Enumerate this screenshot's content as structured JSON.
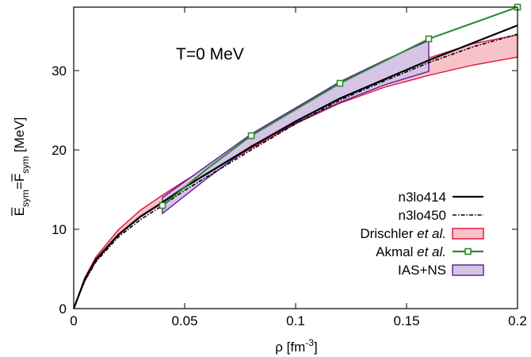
{
  "chart_data": {
    "type": "line",
    "annotation": "T=0 MeV",
    "xlabel": {
      "main": "ρ [fm",
      "sup": "-3",
      "tail": "]"
    },
    "ylabel": {
      "e": "E",
      "e_sub": "sym",
      "eq": "=",
      "f": "F",
      "f_sub": "sym",
      "unit": " [MeV]"
    },
    "xlim": [
      0,
      0.2
    ],
    "ylim": [
      0,
      38
    ],
    "xticks": [
      0,
      0.05,
      0.1,
      0.15,
      0.2
    ],
    "xtick_labels": [
      "0",
      "0.05",
      "0.1",
      "0.15",
      "0.2"
    ],
    "yticks": [
      0,
      10,
      20,
      30
    ],
    "ytick_labels": [
      "0",
      "10",
      "20",
      "30"
    ],
    "legend_position": "bottom-right",
    "series": [
      {
        "name": "n3lo414",
        "style": "solid",
        "color": "#000000",
        "x": [
          0,
          0.005,
          0.01,
          0.02,
          0.03,
          0.04,
          0.05,
          0.06,
          0.08,
          0.1,
          0.12,
          0.14,
          0.16,
          0.18,
          0.2
        ],
        "y": [
          0,
          3.7,
          6.2,
          9.3,
          11.6,
          13.4,
          15.3,
          17.0,
          20.4,
          23.6,
          26.5,
          28.9,
          31.3,
          33.5,
          35.7
        ]
      },
      {
        "name": "n3lo450",
        "style": "dashdot",
        "color": "#000000",
        "x": [
          0,
          0.005,
          0.01,
          0.02,
          0.03,
          0.04,
          0.05,
          0.06,
          0.08,
          0.1,
          0.12,
          0.14,
          0.16,
          0.18,
          0.2
        ],
        "y": [
          0,
          3.5,
          5.9,
          9.0,
          11.2,
          13.0,
          14.9,
          16.6,
          20.0,
          23.3,
          26.3,
          28.7,
          31.0,
          33.0,
          34.6
        ]
      },
      {
        "name": "Drischler et al.",
        "name_plain": "Drischler ",
        "name_italic": "et al.",
        "style": "band",
        "color": "#e0103a",
        "fill": "#f7c2c8",
        "x": [
          0,
          0.005,
          0.01,
          0.02,
          0.03,
          0.04,
          0.05,
          0.06,
          0.08,
          0.1,
          0.12,
          0.14,
          0.16,
          0.18,
          0.2
        ],
        "upper": [
          0,
          3.9,
          6.5,
          9.9,
          12.4,
          14.3,
          16.1,
          17.7,
          20.7,
          23.6,
          26.5,
          29.2,
          31.6,
          33.4,
          34.5
        ],
        "lower": [
          0,
          3.5,
          6.0,
          9.2,
          11.5,
          13.3,
          15.2,
          16.9,
          20.2,
          23.3,
          25.9,
          27.9,
          29.4,
          30.7,
          31.7
        ]
      },
      {
        "name": "Akmal et al.",
        "name_plain": "Akmal ",
        "name_italic": "et al.",
        "style": "line-marker",
        "color": "#2a8a2a",
        "x": [
          0.04,
          0.06,
          0.08,
          0.1,
          0.12,
          0.14,
          0.16,
          0.18,
          0.2
        ],
        "y": [
          13.0,
          17.6,
          21.8,
          25.1,
          28.4,
          31.2,
          34.0,
          36.0,
          38.0
        ],
        "marker_x": [
          0.04,
          0.08,
          0.12,
          0.16,
          0.2
        ],
        "marker_y": [
          13.0,
          21.8,
          28.4,
          34.0,
          38.0
        ]
      },
      {
        "name": "IAS+NS",
        "style": "band",
        "color": "#5a1a9a",
        "fill": "#d5c4e6",
        "x": [
          0.04,
          0.06,
          0.08,
          0.1,
          0.12,
          0.14,
          0.16
        ],
        "upper": [
          14.0,
          18.0,
          22.0,
          25.3,
          28.6,
          31.3,
          33.8
        ],
        "lower": [
          12.0,
          16.4,
          20.5,
          23.4,
          26.0,
          28.2,
          29.9
        ]
      }
    ]
  }
}
